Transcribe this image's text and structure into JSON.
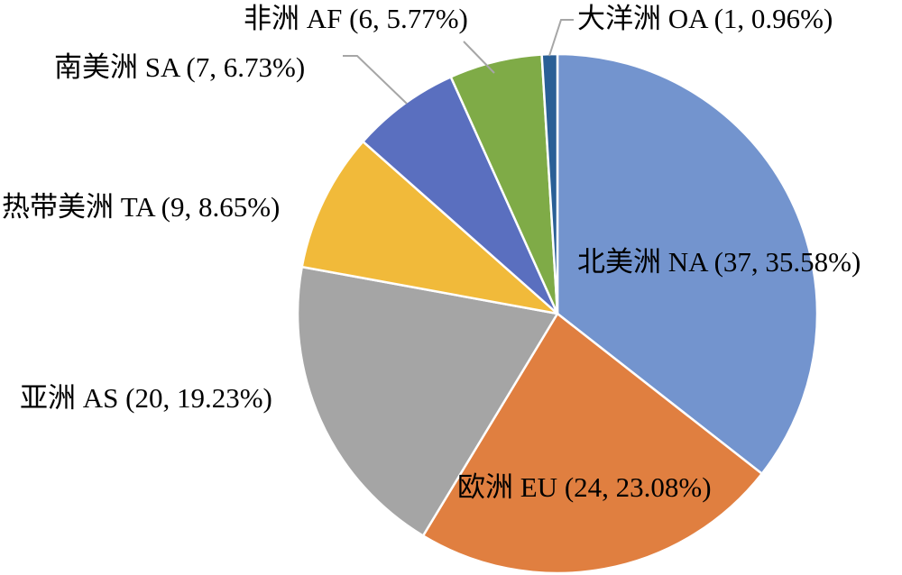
{
  "chart_data": {
    "type": "pie",
    "slices": [
      {
        "label": "北美洲 NA (37, 35.58%)",
        "value": 37,
        "percent": 35.58,
        "color": "#7394CE"
      },
      {
        "label": "欧洲 EU (24, 23.08%)",
        "value": 24,
        "percent": 23.08,
        "color": "#E07F40"
      },
      {
        "label": "亚洲 AS (20, 19.23%)",
        "value": 20,
        "percent": 19.23,
        "color": "#A5A5A5"
      },
      {
        "label": "热带美洲 TA (9, 8.65%)",
        "value": 9,
        "percent": 8.65,
        "color": "#F1BA3A"
      },
      {
        "label": "南美洲 SA (7, 6.73%)",
        "value": 7,
        "percent": 6.73,
        "color": "#5A6FBF"
      },
      {
        "label": "非洲 AF (6, 5.77%)",
        "value": 6,
        "percent": 5.77,
        "color": "#7FAB47"
      },
      {
        "label": "大洋洲 OA (1, 0.96%)",
        "value": 1,
        "percent": 0.96,
        "color": "#2A5F96"
      }
    ],
    "start_angle": "12 o'clock",
    "direction": "clockwise",
    "legend": "none"
  }
}
